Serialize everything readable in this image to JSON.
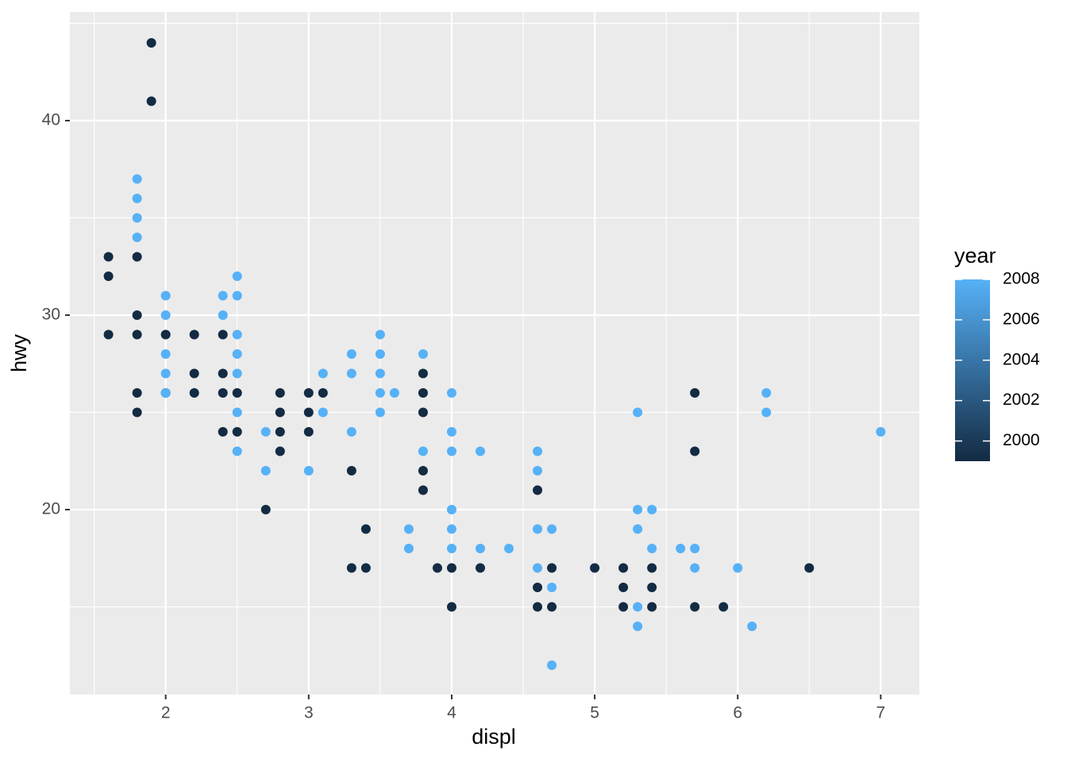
{
  "chart_data": {
    "type": "scatter",
    "x_label": "displ",
    "y_label": "hwy",
    "x": [
      1.6,
      1.6,
      1.6,
      1.8,
      1.8,
      1.8,
      1.8,
      1.8,
      1.8,
      1.8,
      1.8,
      1.8,
      1.9,
      1.9,
      2.0,
      2.0,
      2.0,
      2.0,
      2.0,
      2.0,
      2.0,
      2.0,
      2.2,
      2.2,
      2.2,
      2.4,
      2.4,
      2.4,
      2.4,
      2.4,
      2.4,
      2.5,
      2.5,
      2.5,
      2.5,
      2.5,
      2.5,
      2.5,
      2.5,
      2.5,
      2.7,
      2.7,
      2.7,
      2.8,
      2.8,
      2.8,
      2.8,
      3.0,
      3.0,
      3.0,
      3.0,
      3.1,
      3.1,
      3.1,
      3.3,
      3.3,
      3.3,
      3.3,
      3.3,
      3.4,
      3.4,
      3.5,
      3.5,
      3.5,
      3.5,
      3.5,
      3.6,
      3.7,
      3.7,
      3.8,
      3.8,
      3.8,
      3.8,
      3.8,
      3.8,
      3.8,
      3.9,
      4.0,
      4.0,
      4.0,
      4.0,
      4.0,
      4.0,
      4.0,
      4.0,
      4.2,
      4.2,
      4.2,
      4.4,
      4.6,
      4.6,
      4.6,
      4.6,
      4.6,
      4.6,
      4.6,
      4.7,
      4.7,
      4.7,
      4.7,
      4.7,
      5.0,
      5.2,
      5.2,
      5.2,
      5.3,
      5.3,
      5.3,
      5.3,
      5.3,
      5.4,
      5.4,
      5.4,
      5.4,
      5.4,
      5.6,
      5.7,
      5.7,
      5.7,
      5.7,
      5.7,
      5.9,
      6.0,
      6.1,
      6.2,
      6.2,
      6.5,
      7.0
    ],
    "values": [
      33,
      32,
      29,
      37,
      36,
      35,
      34,
      33,
      30,
      29,
      26,
      25,
      44,
      41,
      31,
      30,
      29,
      29,
      28,
      27,
      26,
      26,
      29,
      27,
      26,
      31,
      30,
      29,
      27,
      26,
      24,
      32,
      31,
      29,
      28,
      27,
      26,
      25,
      24,
      23,
      24,
      22,
      20,
      26,
      25,
      24,
      23,
      26,
      25,
      24,
      22,
      27,
      26,
      25,
      28,
      27,
      24,
      22,
      17,
      19,
      17,
      29,
      28,
      27,
      26,
      25,
      26,
      19,
      18,
      28,
      27,
      26,
      25,
      23,
      22,
      21,
      17,
      26,
      24,
      23,
      20,
      19,
      18,
      17,
      15,
      23,
      18,
      17,
      18,
      23,
      22,
      21,
      19,
      17,
      16,
      15,
      19,
      17,
      16,
      15,
      12,
      17,
      17,
      16,
      15,
      25,
      20,
      19,
      15,
      14,
      20,
      18,
      17,
      16,
      15,
      18,
      26,
      23,
      18,
      17,
      15,
      15,
      17,
      14,
      26,
      25,
      17,
      24
    ],
    "color_values": [
      1999,
      1999,
      1999,
      2008,
      2008,
      2008,
      2008,
      1999,
      1999,
      1999,
      1999,
      1999,
      1999,
      1999,
      2008,
      2008,
      2008,
      1999,
      2008,
      2008,
      1999,
      2008,
      1999,
      1999,
      1999,
      2008,
      2008,
      1999,
      1999,
      1999,
      1999,
      2008,
      2008,
      2008,
      2008,
      2008,
      1999,
      2008,
      1999,
      2008,
      2008,
      2008,
      1999,
      1999,
      1999,
      1999,
      1999,
      1999,
      1999,
      1999,
      2008,
      2008,
      1999,
      2008,
      2008,
      2008,
      2008,
      1999,
      1999,
      1999,
      1999,
      2008,
      2008,
      2008,
      2008,
      2008,
      2008,
      2008,
      2008,
      2008,
      1999,
      1999,
      1999,
      2008,
      1999,
      1999,
      1999,
      2008,
      2008,
      2008,
      2008,
      2008,
      2008,
      1999,
      1999,
      2008,
      2008,
      1999,
      2008,
      2008,
      2008,
      1999,
      2008,
      2008,
      1999,
      1999,
      2008,
      1999,
      2008,
      1999,
      2008,
      1999,
      1999,
      1999,
      1999,
      2008,
      2008,
      2008,
      2008,
      2008,
      2008,
      2008,
      1999,
      1999,
      1999,
      2008,
      1999,
      1999,
      2008,
      2008,
      1999,
      1999,
      2008,
      2008,
      2008,
      2008,
      1999,
      2008
    ],
    "xlim": [
      1.33,
      7.27
    ],
    "ylim": [
      10.49,
      45.59
    ],
    "xticks": [
      2,
      3,
      4,
      5,
      6,
      7
    ],
    "yticks": [
      20,
      30,
      40
    ],
    "xminor": [
      1.5,
      2.5,
      3.5,
      4.5,
      5.5,
      6.5
    ],
    "yminor": [
      15,
      25,
      35,
      45
    ],
    "grid": true,
    "colorbar": {
      "title": "year",
      "limits": [
        1999,
        2008
      ],
      "ticks": [
        2000,
        2002,
        2004,
        2006,
        2008
      ],
      "low": "#132B43",
      "high": "#56B1F7"
    }
  }
}
